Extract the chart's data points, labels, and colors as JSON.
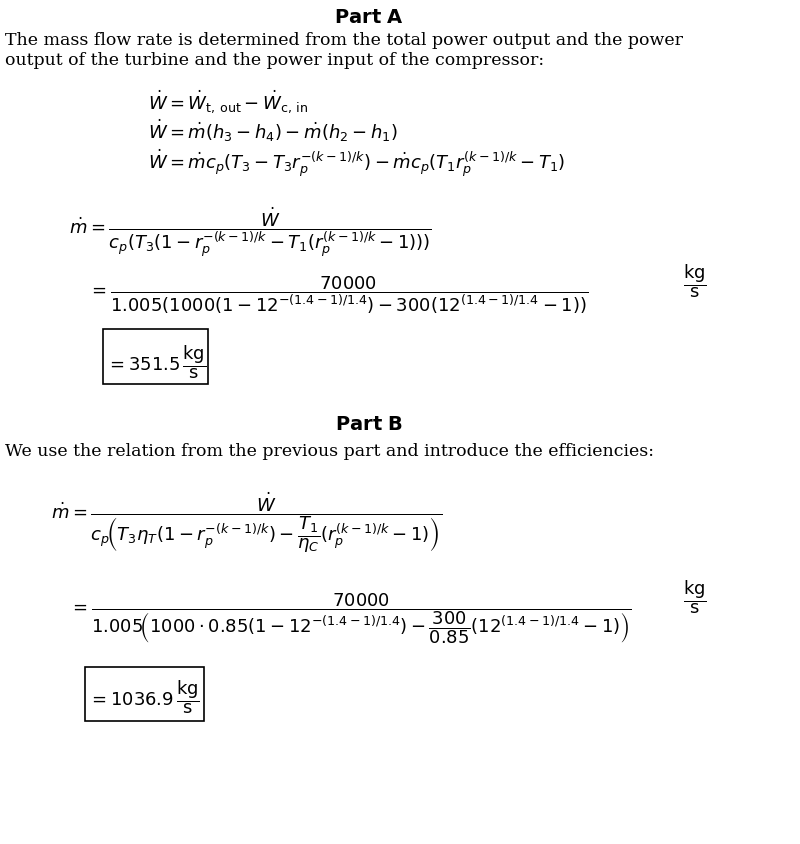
{
  "background_color": "#ffffff",
  "title_A": "Part A",
  "title_B": "Part B",
  "intro_A_line1": "The mass flow rate is determined from the total power output and the power",
  "intro_A_line2": "output of the turbine and the power input of the compressor:",
  "intro_B": "We use the relation from the previous part and introduce the efficiencies:",
  "eq1": "$\\dot{W} = \\dot{W}_{\\mathrm{t,\\,out}} - \\dot{W}_{\\mathrm{c,\\,in}}$",
  "eq2": "$\\dot{W} = \\dot{m}(h_3 - h_4) - \\dot{m}(h_2 - h_1)$",
  "eq3": "$\\dot{W} = \\dot{m}c_p(T_3 - T_3 r_p^{-(k-1)/k}) - \\dot{m}c_p(T_1 r_p^{(k-1)/k} - T_1)$",
  "eq4_lhs": "$\\dot{m} = $",
  "eq4_num": "$\\dot{W}$",
  "eq4_den": "$c_p(T_3(1 - r_p^{-(k-1)/k} - T_1(r_p^{(k-1)/k} - 1))$",
  "answer_A": "351.5",
  "answer_B": "1036.9"
}
